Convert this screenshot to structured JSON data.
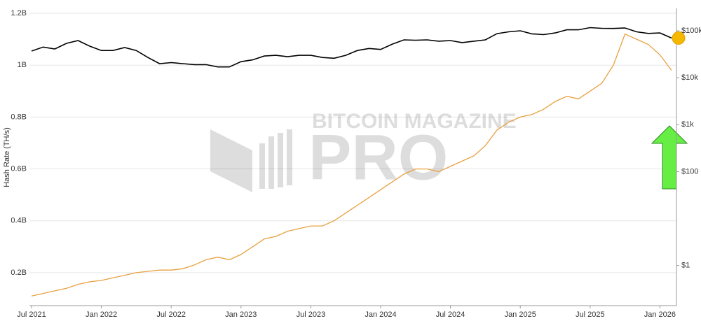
{
  "chart_data": {
    "type": "line",
    "ylabel": "Hash Rate (TH/s)",
    "watermark": [
      "BITCOIN MAGAZINE",
      "PRO"
    ],
    "x": [
      "Jul 2021",
      "Aug 2021",
      "Sep 2021",
      "Oct 2021",
      "Nov 2021",
      "Dec 2021",
      "Jan 2022",
      "Feb 2022",
      "Mar 2022",
      "Apr 2022",
      "May 2022",
      "Jun 2022",
      "Jul 2022",
      "Aug 2022",
      "Sep 2022",
      "Oct 2022",
      "Nov 2022",
      "Dec 2022",
      "Jan 2023",
      "Feb 2023",
      "Mar 2023",
      "Apr 2023",
      "May 2023",
      "Jun 2023",
      "Jul 2023",
      "Aug 2023",
      "Sep 2023",
      "Oct 2023",
      "Nov 2023",
      "Dec 2023",
      "Jan 2024",
      "Feb 2024",
      "Mar 2024",
      "Apr 2024",
      "May 2024",
      "Jun 2024",
      "Jul 2024",
      "Aug 2024",
      "Sep 2024",
      "Oct 2024",
      "Nov 2024",
      "Dec 2024",
      "Jan 2025",
      "Feb 2025",
      "Mar 2025",
      "Apr 2025",
      "May 2025",
      "Jun 2025",
      "Jul 2025",
      "Aug 2025",
      "Sep 2025",
      "Oct 2025",
      "Nov 2025",
      "Dec 2025",
      "Jan 2026",
      "Feb 2026"
    ],
    "xticks": [
      "Jul 2021",
      "Jan 2022",
      "Jul 2022",
      "Jan 2023",
      "Jul 2023",
      "Jan 2024",
      "Jul 2024",
      "Jan 2025",
      "Jul 2025",
      "Jan 2026"
    ],
    "series": [
      {
        "color": "#e8a040",
        "axis": "y",
        "values": [
          110000000,
          120000000,
          130000000,
          140000000,
          155000000,
          165000000,
          170000000,
          180000000,
          190000000,
          200000000,
          205000000,
          210000000,
          210000000,
          215000000,
          230000000,
          250000000,
          260000000,
          250000000,
          270000000,
          300000000,
          330000000,
          340000000,
          360000000,
          370000000,
          380000000,
          380000000,
          400000000,
          430000000,
          460000000,
          490000000,
          520000000,
          550000000,
          580000000,
          600000000,
          600000000,
          590000000,
          610000000,
          630000000,
          650000000,
          690000000,
          750000000,
          780000000,
          800000000,
          810000000,
          830000000,
          860000000,
          880000000,
          870000000,
          900000000,
          930000000,
          1000000000,
          1120000000,
          1100000000,
          1080000000,
          1040000000,
          980000000
        ]
      },
      {
        "color": "#000000",
        "axis": "y2",
        "values": [
          37000,
          45000,
          41000,
          54000,
          62000,
          47000,
          38000,
          38000,
          44000,
          38000,
          27000,
          20000,
          21000,
          20000,
          19000,
          19000,
          17000,
          17000,
          22000,
          24000,
          29000,
          30000,
          28000,
          30000,
          30000,
          27000,
          26000,
          30000,
          38000,
          42000,
          40000,
          52000,
          64000,
          63000,
          64000,
          60000,
          62000,
          56000,
          60000,
          64000,
          87000,
          95000,
          100000,
          86000,
          83000,
          90000,
          105000,
          105000,
          117000,
          113000,
          112000,
          115000,
          95000,
          88000,
          90000,
          70000
        ]
      }
    ],
    "ylim": [
      73000000,
      1219000000
    ],
    "yticks": [
      {
        "value": 200000000,
        "label": "0.2B"
      },
      {
        "value": 400000000,
        "label": "0.4B"
      },
      {
        "value": 600000000,
        "label": "0.6B"
      },
      {
        "value": 800000000,
        "label": "0.8B"
      },
      {
        "value": 1000000000,
        "label": "1B"
      },
      {
        "value": 1200000000,
        "label": "1.2B"
      }
    ],
    "y2lim": [
      0.14,
      300000
    ],
    "y2log": true,
    "y2ticks": [
      {
        "value": 1,
        "label": "$1"
      },
      {
        "value": 100,
        "label": "$100"
      },
      {
        "value": 1000,
        "label": "$1k"
      },
      {
        "value": 10000,
        "label": "$10k"
      },
      {
        "value": 100000,
        "label": "$100k"
      }
    ],
    "grid": true,
    "last_marker_color": "#f5b800"
  }
}
